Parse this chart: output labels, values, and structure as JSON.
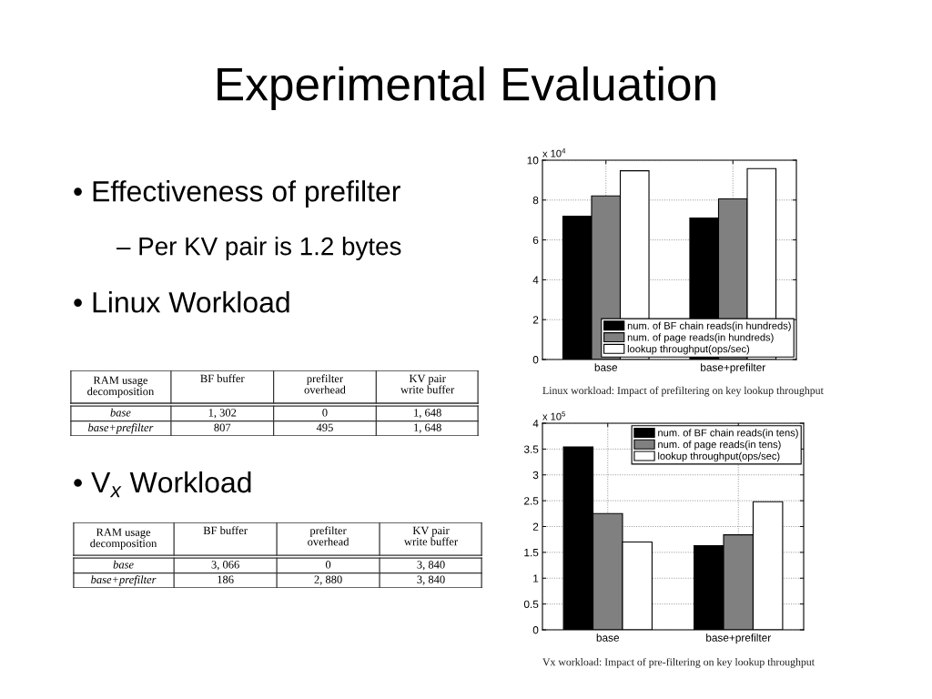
{
  "chart_data": [
    {
      "type": "other",
      "title": "Experimental Evaluation",
      "annotations": [
        "• Effectiveness of prefilter",
        "– Per KV pair is 1.2 bytes",
        "• Linux Workload",
        "• V$_{x}$ Workload"
      ]
    },
    {
      "type": "bar",
      "categories": [
        "base",
        "base+prefilter"
      ],
      "series": [
        {
          "name": "num. of BF chain reads(in hundreds)",
          "color": "#000000",
          "values": [
            7.19,
            7.1
          ]
        },
        {
          "name": "num. of page reads(in hundreds)",
          "color": "#808080",
          "values": [
            8.21,
            8.06
          ]
        },
        {
          "name": "lookup throughput(ops/sec)",
          "color": "#ffffff",
          "values": [
            9.47,
            9.58
          ]
        }
      ],
      "ylim": [
        0,
        10
      ],
      "yticks": [
        0,
        2,
        4,
        6,
        8,
        10
      ],
      "grid": true,
      "legend": "bottom right",
      "annotations": [
        "x 10$^{4}$",
        "Linux workload: Impact of prefiltering on key lookup throughput"
      ]
    },
    {
      "type": "other",
      "ylabel": "RAM usage decomposition",
      "categories": [
        "BF buffer",
        "prefilter overhead",
        "KV pair write buffer"
      ],
      "y_categories": [
        "base",
        "base+prefilter"
      ],
      "cell_labels": [
        [
          "1, 302",
          "0",
          "1, 648"
        ],
        [
          "807",
          "495",
          "1, 648"
        ]
      ]
    },
    {
      "type": "bar",
      "categories": [
        "base",
        "base+prefilter"
      ],
      "series": [
        {
          "name": "num. of BF chain reads(in tens)",
          "color": "#000000",
          "values": [
            3.54,
            1.63
          ]
        },
        {
          "name": "num. of page reads(in tens)",
          "color": "#808080",
          "values": [
            2.25,
            1.84
          ]
        },
        {
          "name": "lookup throughput(ops/sec)",
          "color": "#ffffff",
          "values": [
            1.7,
            2.48
          ]
        }
      ],
      "ylim": [
        0,
        4
      ],
      "yticks": [
        0,
        0.5,
        1,
        1.5,
        2,
        2.5,
        3,
        3.5,
        4
      ],
      "grid": true,
      "legend": "top right",
      "annotations": [
        "x 10$^{5}$",
        "Vx workload: Impact of pre-filtering on key lookup throughput"
      ]
    },
    {
      "type": "other",
      "ylabel": "RAM usage decomposition",
      "categories": [
        "BF buffer",
        "prefilter overhead",
        "KV pair write buffer"
      ],
      "y_categories": [
        "base",
        "base+prefilter"
      ],
      "cell_labels": [
        [
          "3, 066",
          "0",
          "3, 840"
        ],
        [
          "186",
          "2, 880",
          "3, 840"
        ]
      ]
    }
  ]
}
